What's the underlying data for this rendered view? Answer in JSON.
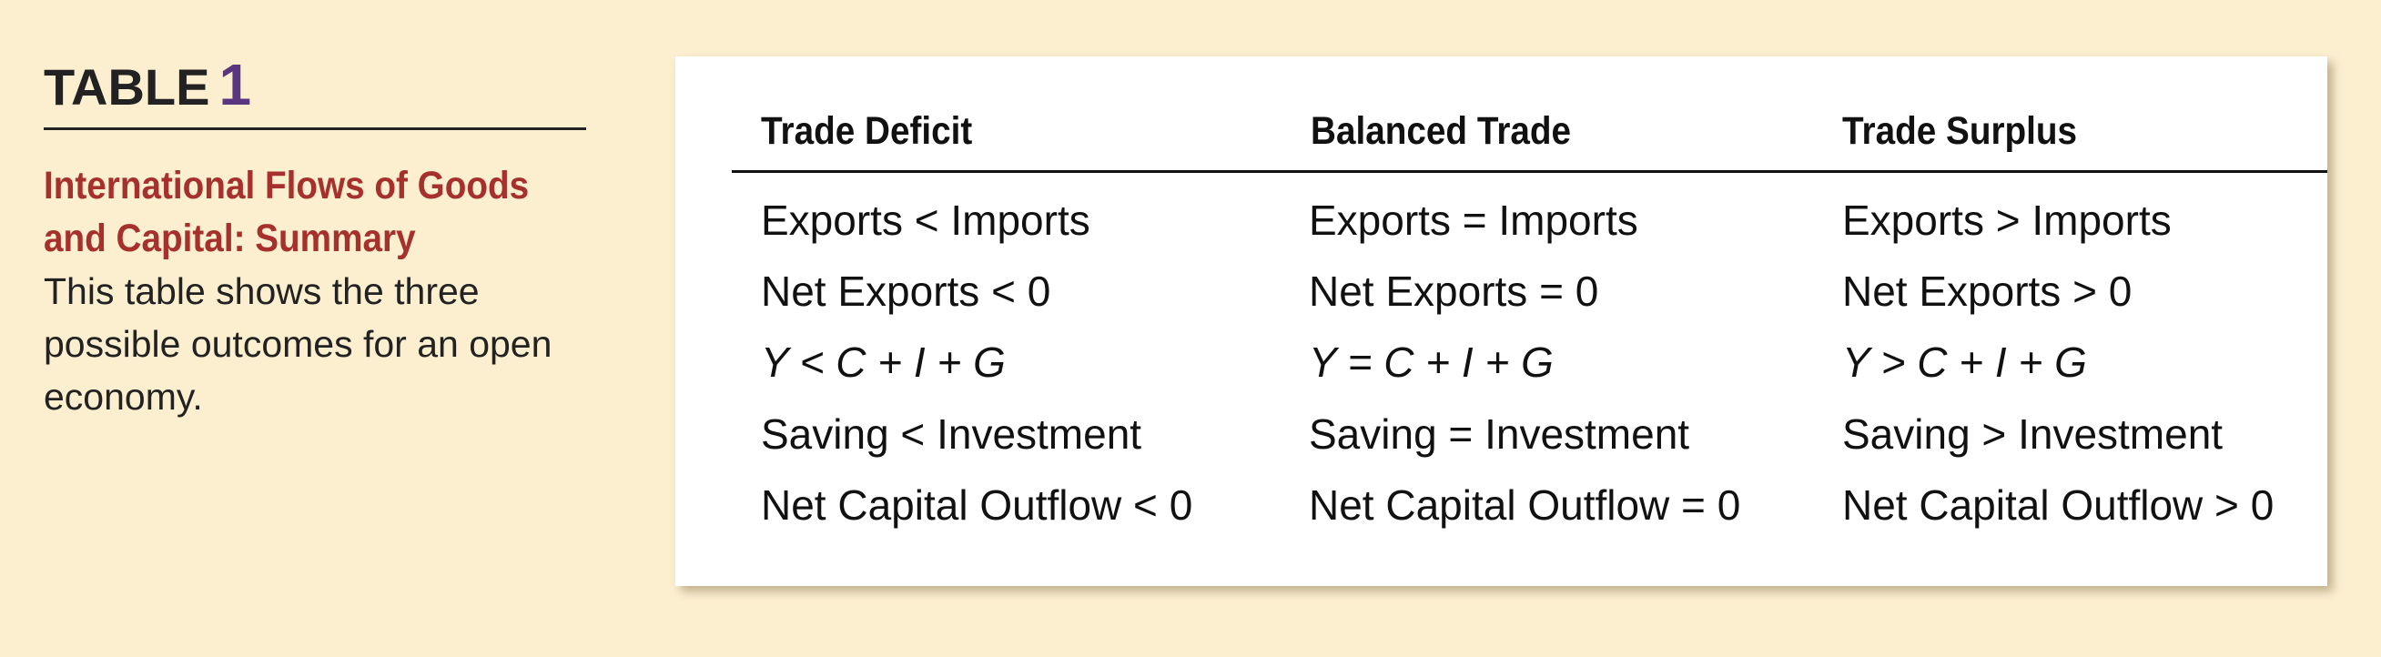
{
  "sidebar": {
    "label": "TABLE",
    "number": "1",
    "caption_title_line1": "International Flows of Goods",
    "caption_title_line2": "and Capital: Summary",
    "caption_body": "This table shows the three possible outcomes for an open economy."
  },
  "table": {
    "columns": [
      {
        "header": "Trade Deficit",
        "rows": [
          "Exports < Imports",
          "Net Exports < 0",
          "Y < C + I + G",
          "Saving < Investment",
          "Net Capital Outflow < 0"
        ]
      },
      {
        "header": "Balanced Trade",
        "rows": [
          "Exports = Imports",
          "Net Exports = 0",
          "Y = C + I + G",
          "Saving = Investment",
          "Net Capital Outflow = 0"
        ]
      },
      {
        "header": "Trade Surplus",
        "rows": [
          "Exports > Imports",
          "Net Exports > 0",
          "Y > C + I + G",
          "Saving > Investment",
          "Net Capital Outflow > 0"
        ]
      }
    ]
  }
}
